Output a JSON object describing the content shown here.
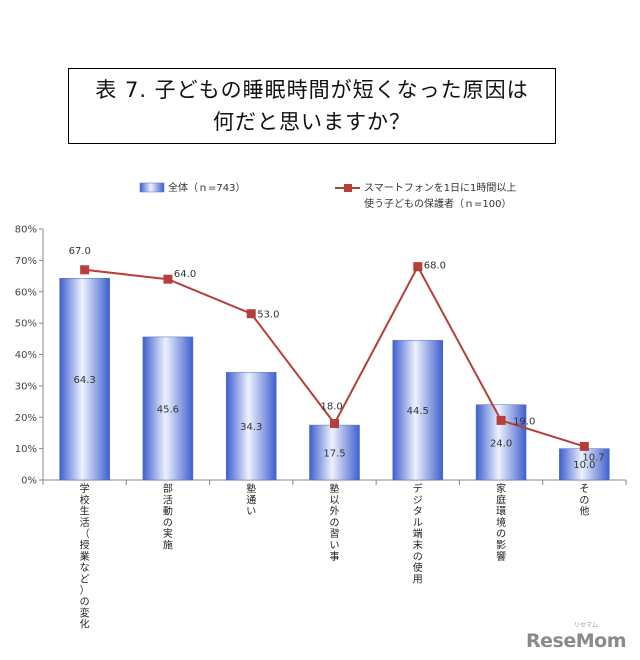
{
  "title": {
    "line1": "表 7. 子どもの睡眠時間が短くなった原因は",
    "line2": "何だと思いますか？"
  },
  "chart_data": {
    "type": "bar",
    "y_ticks": [
      "0%",
      "10%",
      "20%",
      "30%",
      "40%",
      "50%",
      "60%",
      "70%",
      "80%"
    ],
    "ylim": [
      0,
      80
    ],
    "grid": false,
    "legend_position": "top",
    "categories": [
      "学校生活（授業など）の変化",
      "部活動の実施",
      "塾通い",
      "塾以外の習い事",
      "デジタル端末の使用",
      "家庭環境の影響",
      "その他"
    ],
    "series": [
      {
        "name": "全体（ｎ=743）",
        "type": "bar",
        "values": [
          64.3,
          45.6,
          34.3,
          17.5,
          44.5,
          24.0,
          10.0
        ],
        "labels": [
          "64.3",
          "45.6",
          "34.3",
          "17.5",
          "44.5",
          "24.0",
          "10.0"
        ],
        "color": "#5b78d6"
      },
      {
        "name": "スマートフォンを1日に1時間以上使う子どもの保護者（ｎ=100）",
        "type": "line",
        "values": [
          67.0,
          64.0,
          53.0,
          18.0,
          68.0,
          19.0,
          10.7
        ],
        "labels": [
          "67.0",
          "64.0",
          "53.0",
          "18.0",
          "68.0",
          "19.0",
          "10.7"
        ],
        "color": "#b5403a"
      }
    ]
  },
  "legend": {
    "bar_label": "全体（ｎ=743）",
    "line_label_1": "スマートフォンを1日に1時間以上",
    "line_label_2": "使う子どもの保護者（ｎ=100）"
  },
  "watermark": {
    "text": "ReseMom",
    "small": "リセマム"
  }
}
